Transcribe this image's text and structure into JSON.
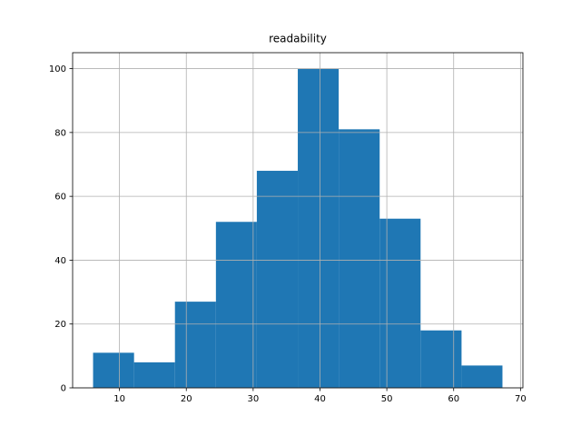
{
  "chart_data": {
    "type": "histogram",
    "title": "readability",
    "bins": [
      6.05,
      12.18,
      18.3,
      24.43,
      30.55,
      36.68,
      42.8,
      48.93,
      55.05,
      61.18,
      67.3
    ],
    "values": [
      11,
      8,
      27,
      52,
      68,
      100,
      81,
      53,
      18,
      7
    ],
    "color": "#1f77b4",
    "xlim": [
      2.99,
      70.36
    ],
    "xticks": [
      10,
      20,
      30,
      40,
      50,
      60,
      70
    ],
    "ylim": [
      0,
      105
    ],
    "yticks": [
      0,
      20,
      40,
      60,
      80,
      100
    ],
    "grid": true
  }
}
